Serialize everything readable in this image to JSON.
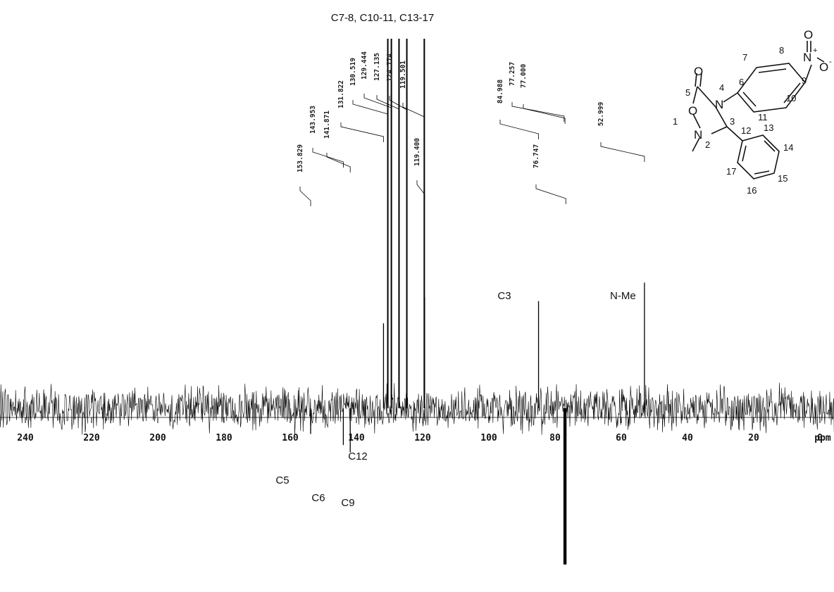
{
  "chart_data": {
    "type": "nmr-13c-spectrum",
    "x_unit": "ppm",
    "x_range": [
      248,
      -16
    ],
    "x_reversed": true,
    "ticks": [
      240,
      220,
      200,
      180,
      160,
      140,
      120,
      100,
      80,
      60,
      40,
      20,
      0
    ],
    "peak_labels": [
      "153.829",
      "143.953",
      "141.871",
      "131.822",
      "130.519",
      "129.444",
      "127.135",
      "124.774",
      "119.501",
      "119.400",
      "84.988",
      "77.257",
      "77.000",
      "76.747",
      "52.999"
    ],
    "peaks": [
      {
        "ppm": 153.829,
        "direction": "down",
        "intensity": 0.14
      },
      {
        "ppm": 143.953,
        "direction": "down",
        "intensity": 0.2
      },
      {
        "ppm": 141.871,
        "direction": "down",
        "intensity": 0.24
      },
      {
        "ppm": 131.822,
        "direction": "up",
        "intensity": 0.23
      },
      {
        "ppm": 130.519,
        "direction": "up",
        "intensity": 1.0
      },
      {
        "ppm": 129.444,
        "direction": "up",
        "intensity": 1.0
      },
      {
        "ppm": 127.135,
        "direction": "up",
        "intensity": 1.0
      },
      {
        "ppm": 124.774,
        "direction": "up",
        "intensity": 1.0
      },
      {
        "ppm": 119.501,
        "direction": "up",
        "intensity": 1.0
      },
      {
        "ppm": 119.4,
        "direction": "up",
        "intensity": 0.3
      },
      {
        "ppm": 84.988,
        "direction": "up",
        "intensity": 0.29
      },
      {
        "ppm": 77.257,
        "direction": "down",
        "intensity": 0.85
      },
      {
        "ppm": 77.0,
        "direction": "down",
        "intensity": 0.85
      },
      {
        "ppm": 76.747,
        "direction": "down",
        "intensity": 0.85
      },
      {
        "ppm": 52.999,
        "direction": "up",
        "intensity": 0.34
      }
    ],
    "assignments": [
      {
        "label": "C7-8, C10-11, C13-17",
        "ppm": 125
      },
      {
        "label": "C3",
        "ppm": 84.988
      },
      {
        "label": "N-Me",
        "ppm": 52.999
      },
      {
        "label": "C5",
        "ppm": 153.829
      },
      {
        "label": "C6",
        "ppm": 143.953
      },
      {
        "label": "C9",
        "ppm": 141.871
      },
      {
        "label": "C12",
        "ppm": 131.822
      }
    ]
  },
  "structure": {
    "atoms": {
      "O": "O",
      "N": "N",
      "minus": "-",
      "plus": "+"
    },
    "numbers": [
      "1",
      "2",
      "3",
      "4",
      "5",
      "6",
      "7",
      "8",
      "9",
      "10",
      "11",
      "12",
      "13",
      "14",
      "15",
      "16",
      "17"
    ]
  }
}
